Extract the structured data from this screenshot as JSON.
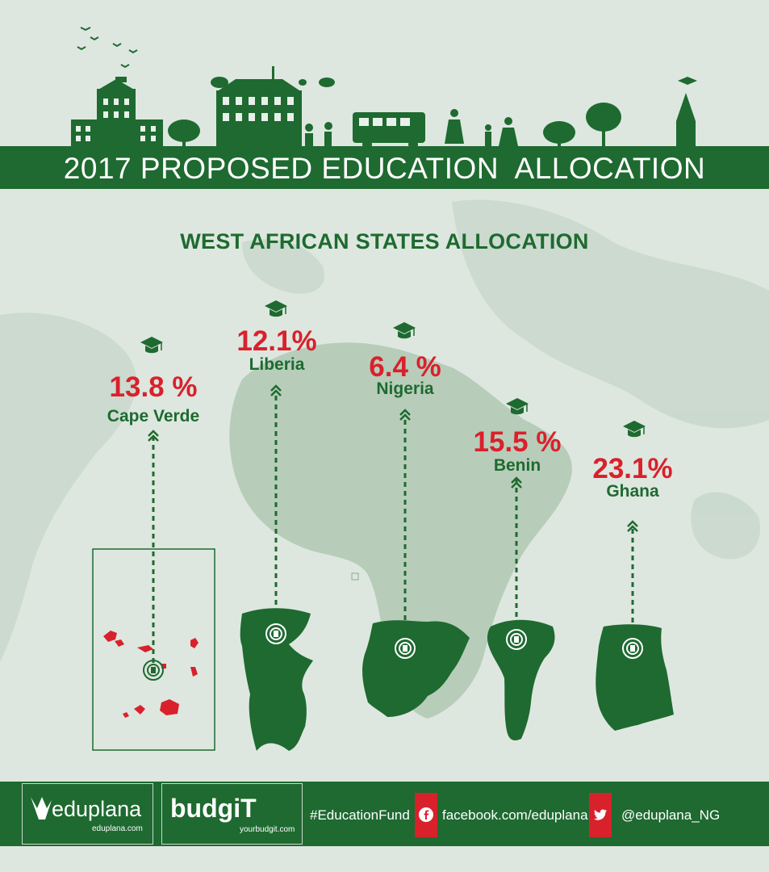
{
  "header": {
    "title": "2017 PROPOSED EDUCATION  ALLOCATION",
    "subtitle": "WEST AFRICAN STATES ALLOCATION"
  },
  "chart_data": {
    "type": "infographic",
    "title": "WEST AFRICAN STATES ALLOCATION",
    "unit": "%",
    "categories": [
      "Cape Verde",
      "Liberia",
      "Nigeria",
      "Benin",
      "Ghana"
    ],
    "values": [
      13.8,
      12.1,
      6.4,
      15.5,
      23.1
    ],
    "labels": [
      "13.8 %",
      "12.1%",
      "6.4 %",
      "15.5 %",
      "23.1%"
    ],
    "colors": {
      "value": "#d9212c",
      "country": "#1e6a30"
    }
  },
  "footer": {
    "brand1": "eduplana",
    "brand1_url": "eduplana.com",
    "brand2": "budgiT",
    "brand2_url": "yourbudgit.com",
    "hashtag": "#EducationFund",
    "facebook": "facebook.com/eduplana",
    "twitter": "@eduplana_NG",
    "icons": [
      "facebook-icon",
      "twitter-icon"
    ]
  },
  "colors": {
    "brand_green": "#1e6a30",
    "accent_red": "#d9212c",
    "background": "#dde7df"
  }
}
